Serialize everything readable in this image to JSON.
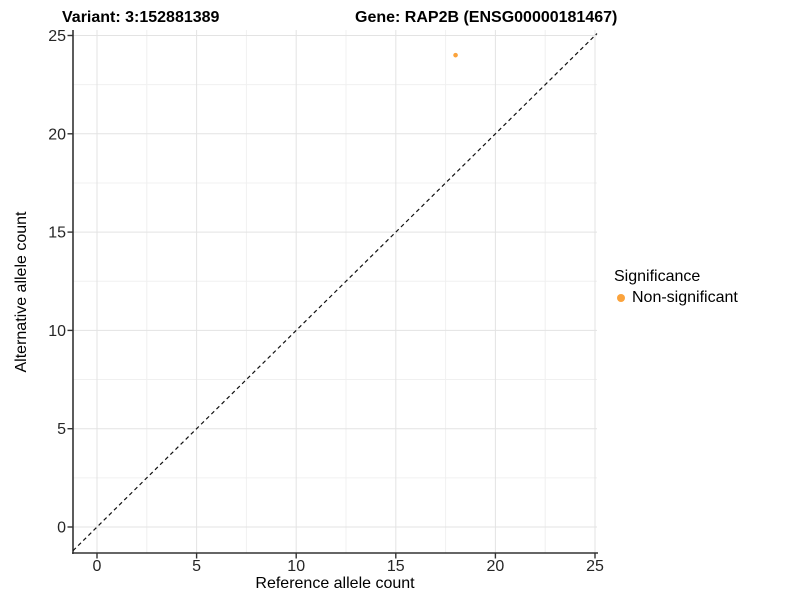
{
  "titles": {
    "variant": "Variant: 3:152881389",
    "gene": "Gene: RAP2B (ENSG00000181467)"
  },
  "chart_data": {
    "type": "scatter",
    "xlabel": "Reference allele count",
    "ylabel": "Alternative allele count",
    "xlim": [
      -1.2,
      25.1
    ],
    "ylim": [
      -1.3,
      25.3
    ],
    "xticks": [
      0,
      5,
      10,
      15,
      20,
      25
    ],
    "yticks": [
      0,
      5,
      10,
      15,
      20,
      25
    ],
    "xticks_minor": [
      2.5,
      7.5,
      12.5,
      17.5,
      22.5
    ],
    "yticks_minor": [
      2.5,
      7.5,
      12.5,
      17.5,
      22.5
    ],
    "grid": "major and minor gridlines on white background",
    "identity_line": {
      "equation": "y = x",
      "style": "dashed",
      "color": "#111111"
    },
    "series": [
      {
        "name": "Non-significant",
        "color": "#FBA33C",
        "points": [
          {
            "x": 18,
            "y": 24
          }
        ]
      }
    ],
    "legend": {
      "title": "Significance",
      "position": "right",
      "entries": [
        {
          "label": "Non-significant",
          "color": "#FBA33C"
        }
      ]
    }
  },
  "style_colors": {
    "point_orange": "#FBA33C",
    "axis_line": "#333333",
    "grid_major": "#E3E3E3",
    "grid_minor": "#F0F0F0"
  }
}
